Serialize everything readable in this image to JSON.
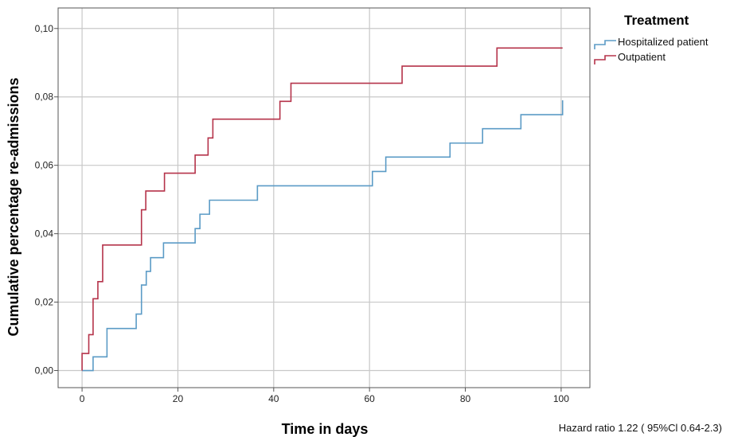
{
  "chart_data": {
    "type": "line",
    "step": true,
    "xlabel": "Time in days",
    "ylabel": "Cumulative percentage re-admissions",
    "xlim": [
      -5,
      106
    ],
    "ylim": [
      -0.005,
      0.106
    ],
    "xticks": [
      0,
      20,
      40,
      60,
      80,
      100
    ],
    "xtick_labels": [
      "0",
      "20",
      "40",
      "60",
      "80",
      "100"
    ],
    "yticks": [
      0,
      0.02,
      0.04,
      0.06,
      0.08,
      0.1
    ],
    "ytick_labels": [
      "0,00",
      "0,02",
      "0,04",
      "0,06",
      "0,08",
      "0,10"
    ],
    "grid": true,
    "legend_title": "Treatment",
    "legend_position": "top-right",
    "annotation": "Hazard ratio 1.22 ( 95%Cl 0.64-2.3)",
    "series": [
      {
        "name": "Hospitalized patient",
        "color": "#5b9bc6",
        "points": [
          [
            0,
            0
          ],
          [
            2.3,
            0.004
          ],
          [
            5.2,
            0.0123
          ],
          [
            11.3,
            0.0165
          ],
          [
            12.4,
            0.025
          ],
          [
            13.4,
            0.029
          ],
          [
            14.3,
            0.033
          ],
          [
            17,
            0.0373
          ],
          [
            23.6,
            0.0415
          ],
          [
            24.6,
            0.0457
          ],
          [
            26.6,
            0.0498
          ],
          [
            36.6,
            0.054
          ],
          [
            60.6,
            0.0582
          ],
          [
            63.4,
            0.0624
          ],
          [
            76.8,
            0.0665
          ],
          [
            83.6,
            0.0707
          ],
          [
            91.6,
            0.0748
          ],
          [
            100.3,
            0.079
          ]
        ]
      },
      {
        "name": "Outpatient",
        "color": "#b5334a",
        "points": [
          [
            0,
            0.005
          ],
          [
            1.4,
            0.0105
          ],
          [
            2.3,
            0.021
          ],
          [
            3.3,
            0.026
          ],
          [
            4.3,
            0.0367
          ],
          [
            12.4,
            0.047
          ],
          [
            13.3,
            0.0525
          ],
          [
            17.2,
            0.0577
          ],
          [
            23.6,
            0.063
          ],
          [
            26.3,
            0.068
          ],
          [
            27.3,
            0.0735
          ],
          [
            41.3,
            0.0787
          ],
          [
            43.6,
            0.084
          ],
          [
            66.8,
            0.089
          ],
          [
            86.6,
            0.0943
          ],
          [
            100.3,
            0.0943
          ]
        ]
      }
    ]
  }
}
